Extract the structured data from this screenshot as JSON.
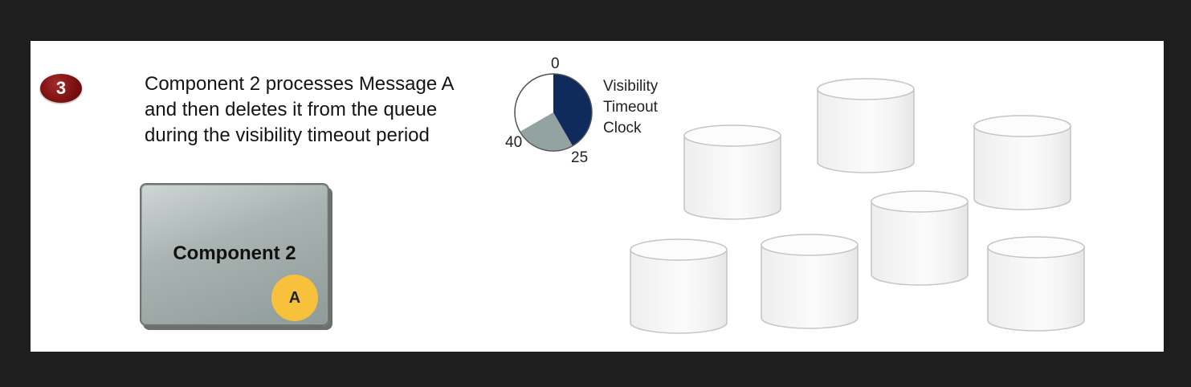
{
  "step": {
    "number": "3"
  },
  "description": {
    "lines": [
      "Component 2 processes Message A",
      "and then deletes it from the queue",
      "during the visibility timeout period"
    ]
  },
  "component": {
    "label": "Component 2",
    "message_token": "A"
  },
  "clock": {
    "caption_lines": [
      "Visibility",
      "Timeout",
      "Clock"
    ],
    "ticks": {
      "top": "0",
      "right": "25",
      "left": "40"
    },
    "colors": {
      "elapsed": "#0f2a5c",
      "remaining": "#93a3a1",
      "empty": "#ffffff"
    }
  },
  "colors": {
    "badge": "#7a1010",
    "token": "#f7c13c",
    "component": "#a9b4b2",
    "background": "#1e1e1e",
    "panel": "#ffffff"
  }
}
